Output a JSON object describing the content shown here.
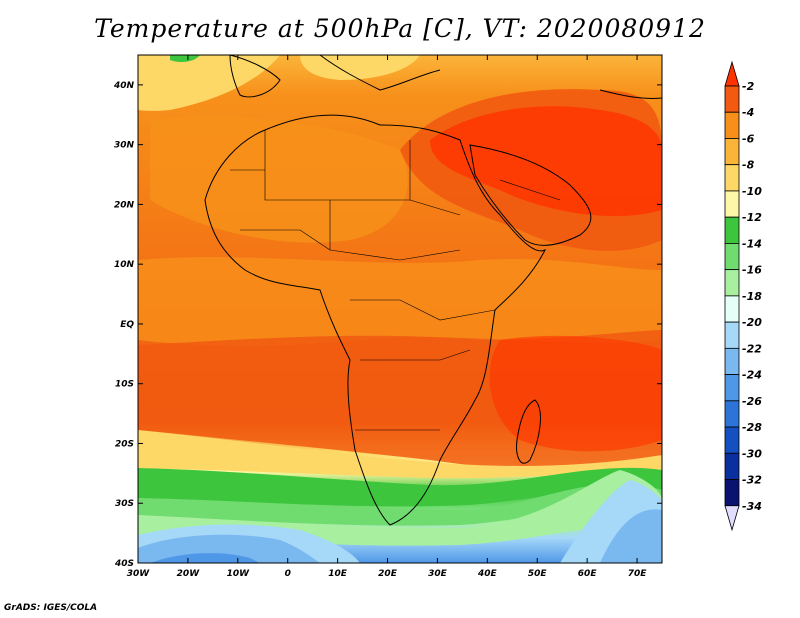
{
  "title": "Temperature at 500hPa [C], VT: 2020080912",
  "footer": "GrADS: IGES/COLA",
  "map": {
    "lon_range": [
      -30,
      75
    ],
    "lat_range": [
      -40,
      45
    ],
    "lon_ticks": [
      "30W",
      "20W",
      "10W",
      "0",
      "10E",
      "20E",
      "30E",
      "40E",
      "50E",
      "60E",
      "70E"
    ],
    "lat_ticks": [
      "40S",
      "30S",
      "20S",
      "10S",
      "EQ",
      "10N",
      "20N",
      "30N",
      "40N"
    ]
  },
  "legend": {
    "labels": [
      "-2",
      "-4",
      "-6",
      "-8",
      "-10",
      "-12",
      "-14",
      "-16",
      "-18",
      "-20",
      "-22",
      "-24",
      "-26",
      "-28",
      "-30",
      "-32",
      "-34"
    ],
    "colors": [
      "#ff3300",
      "#f15a10",
      "#f7901a",
      "#fbb43a",
      "#fdd866",
      "#fff7a8",
      "#3dc53d",
      "#70dc70",
      "#a8f0a0",
      "#e4fff8",
      "#a6d8f8",
      "#7ab8f0",
      "#4f98e8",
      "#2c74d8",
      "#1450c0",
      "#0a30a0",
      "#0a1470",
      "#e0ddff"
    ]
  }
}
